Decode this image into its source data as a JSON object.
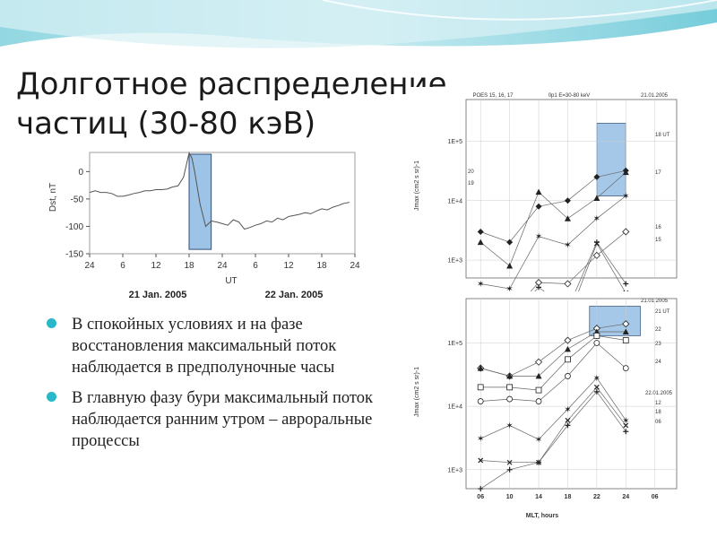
{
  "slide": {
    "title_line1": "Долготное распределение",
    "title_line2": "частиц (30-80 кэВ)",
    "bullets": [
      "В спокойных условиях и на фазе восстановления максимальный поток наблюдается в предполуночные часы",
      "В главную фазу бури максимальный поток наблюдается ранним утром – авроральные процессы"
    ]
  },
  "colors": {
    "accent": "#28b8c8",
    "highlight_box": "#9dc3e6",
    "highlight_stroke": "#2f4f7f",
    "line": "#444444"
  },
  "chart_data": [
    {
      "type": "line",
      "id": "dst",
      "ylabel": "Dst, nT",
      "xlabel": "UT",
      "yticks": [
        "0",
        "-50",
        "-100",
        "-150"
      ],
      "ylim": [
        -150,
        35
      ],
      "xticks": [
        "24",
        "6",
        "12",
        "18",
        "24",
        "6",
        "12",
        "18",
        "24"
      ],
      "xlim": [
        0,
        48
      ],
      "date_labels": [
        "21 Jan. 2005",
        "22 Jan. 2005"
      ],
      "series": [
        {
          "x": [
            0,
            1,
            2,
            3,
            4,
            5,
            6,
            7,
            8,
            9,
            10,
            11,
            12,
            13,
            14,
            15,
            16,
            17,
            18,
            18.5,
            19,
            20,
            21,
            22,
            23,
            24,
            25,
            26,
            27,
            28,
            29,
            30,
            31,
            32,
            33,
            34,
            35,
            36,
            37,
            38,
            39,
            40,
            41,
            42,
            43,
            44,
            45,
            46,
            47
          ],
          "y": [
            -38,
            -35,
            -38,
            -38,
            -40,
            -45,
            -45,
            -43,
            -40,
            -38,
            -35,
            -35,
            -33,
            -33,
            -32,
            -28,
            -26,
            -10,
            34,
            25,
            0,
            -60,
            -100,
            -90,
            -92,
            -95,
            -98,
            -88,
            -92,
            -105,
            -102,
            -98,
            -95,
            -90,
            -92,
            -85,
            -88,
            -82,
            -80,
            -78,
            -75,
            -77,
            -72,
            -68,
            -70,
            -65,
            -62,
            -58,
            -56
          ]
        }
      ],
      "highlight_x": [
        18,
        22
      ]
    },
    {
      "type": "line",
      "id": "poes_21",
      "header": [
        "POES 15, 16, 17",
        "0p1 E=30-80 keV",
        "21.01.2005"
      ],
      "ylabel": "Jmax  (cm2 s sr)-1",
      "yticks": [
        "1E+3",
        "1E+4",
        "1E+5"
      ],
      "ylog_range": [
        2.7,
        5.7
      ],
      "x": [
        6,
        10,
        14,
        18,
        22,
        26
      ],
      "series": [
        {
          "name": "20",
          "marker": "diamond-filled",
          "values": [
            3000,
            2000,
            8000,
            10000,
            25000,
            32000
          ]
        },
        {
          "name": "19",
          "marker": "triangle",
          "values": [
            2000,
            800,
            14000,
            5000,
            11000,
            30000
          ]
        },
        {
          "name": "18 UT",
          "marker": "star",
          "values": [
            400,
            330,
            2500,
            1800,
            5000,
            12000
          ]
        },
        {
          "name": "17",
          "marker": "diamond-open",
          "values": [
            60,
            120,
            420,
            400,
            1200,
            3000
          ]
        },
        {
          "name": "16",
          "marker": "plus",
          "values": [
            55,
            100,
            350,
            150,
            2000,
            400
          ]
        },
        {
          "name": "15",
          "marker": "cross",
          "values": [
            50,
            95,
            270,
            100,
            1900,
            280
          ]
        }
      ],
      "highlight_x": [
        22,
        26
      ],
      "highlight_y": [
        12000,
        200000
      ]
    },
    {
      "type": "line",
      "id": "poes_2122",
      "header": [
        "21.01.2005"
      ],
      "dates": [
        "21.01.2005",
        "22.01.2005"
      ],
      "ylabel": "Jmax  (cm2 s sr)-1",
      "xlabel": "MLT, hours",
      "yticks": [
        "1E+3",
        "1E+4",
        "1E+5"
      ],
      "xticks": [
        "06",
        "10",
        "14",
        "18",
        "22",
        "24",
        "06"
      ],
      "ylog_range": [
        2.7,
        5.7
      ],
      "x": [
        6,
        10,
        14,
        18,
        22,
        26
      ],
      "series": [
        {
          "name": "21 UT",
          "marker": "diamond-open",
          "values": [
            40000,
            30000,
            50000,
            110000,
            170000,
            200000
          ]
        },
        {
          "name": "22",
          "marker": "triangle",
          "values": [
            40000,
            30000,
            30000,
            80000,
            150000,
            150000
          ]
        },
        {
          "name": "23",
          "marker": "square",
          "values": [
            20000,
            20000,
            18000,
            55000,
            130000,
            110000
          ]
        },
        {
          "name": "24",
          "marker": "circle",
          "values": [
            12000,
            13000,
            12000,
            30000,
            100000,
            40000
          ]
        },
        {
          "name": "12",
          "marker": "star",
          "values": [
            3100,
            5000,
            3000,
            9000,
            28000,
            6000
          ]
        },
        {
          "name": "18",
          "marker": "cross",
          "values": [
            1400,
            1300,
            1300,
            6000,
            20000,
            5000
          ]
        },
        {
          "name": "06",
          "marker": "plus",
          "values": [
            500,
            1000,
            1300,
            5000,
            17000,
            4000
          ]
        }
      ],
      "highlight_x": [
        21,
        28
      ],
      "highlight_y": [
        130000,
        380000
      ]
    }
  ]
}
